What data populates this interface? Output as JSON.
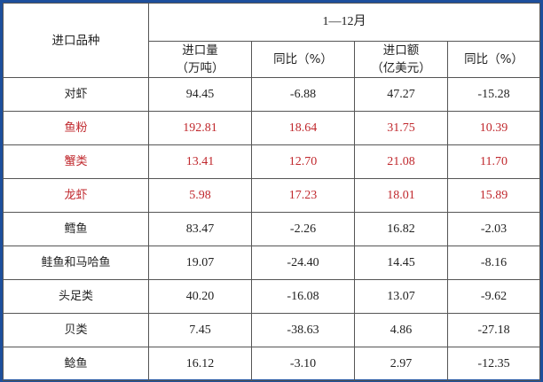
{
  "table": {
    "row_header": "进口品种",
    "period": "1—12月",
    "columns": [
      {
        "line1": "进口量",
        "line2": "（万吨）"
      },
      {
        "line1": "同比（%）",
        "line2": ""
      },
      {
        "line1": "进口额",
        "line2": "（亿美元）"
      },
      {
        "line1": "同比（%）",
        "line2": ""
      }
    ],
    "highlight_color": "#c0282d",
    "rows": [
      {
        "name": "对虾",
        "highlight": false,
        "values": [
          "94.45",
          "-6.88",
          "47.27",
          "-15.28"
        ]
      },
      {
        "name": "鱼粉",
        "highlight": true,
        "values": [
          "192.81",
          "18.64",
          "31.75",
          "10.39"
        ]
      },
      {
        "name": "蟹类",
        "highlight": true,
        "values": [
          "13.41",
          "12.70",
          "21.08",
          "11.70"
        ]
      },
      {
        "name": "龙虾",
        "highlight": true,
        "values": [
          "5.98",
          "17.23",
          "18.01",
          "15.89"
        ]
      },
      {
        "name": "鳕鱼",
        "highlight": false,
        "values": [
          "83.47",
          "-2.26",
          "16.82",
          "-2.03"
        ]
      },
      {
        "name": "鲑鱼和马哈鱼",
        "highlight": false,
        "values": [
          "19.07",
          "-24.40",
          "14.45",
          "-8.16"
        ]
      },
      {
        "name": "头足类",
        "highlight": false,
        "values": [
          "40.20",
          "-16.08",
          "13.07",
          "-9.62"
        ]
      },
      {
        "name": "贝类",
        "highlight": false,
        "values": [
          "7.45",
          "-38.63",
          "4.86",
          "-27.18"
        ]
      },
      {
        "name": "鲶鱼",
        "highlight": false,
        "values": [
          "16.12",
          "-3.10",
          "2.97",
          "-12.35"
        ]
      }
    ]
  }
}
